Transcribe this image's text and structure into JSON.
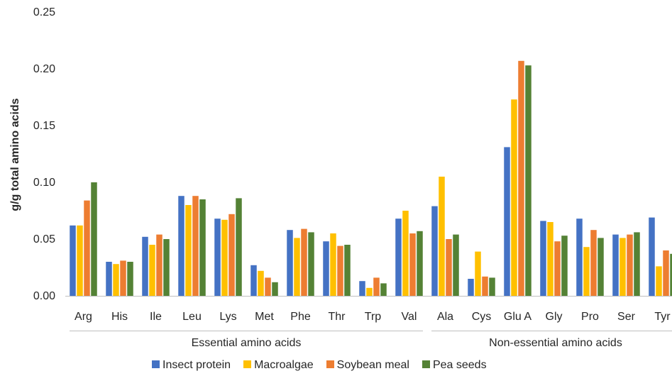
{
  "chart_data": {
    "type": "bar",
    "title": "",
    "xlabel": "",
    "ylabel": "g/g total amino acids",
    "ylim": [
      0,
      0.25
    ],
    "yticks": [
      "0.00",
      "0.05",
      "0.10",
      "0.15",
      "0.20",
      "0.25"
    ],
    "categories": [
      "Arg",
      "His",
      "Ile",
      "Leu",
      "Lys",
      "Met",
      "Phe",
      "Thr",
      "Trp",
      "Val",
      "Ala",
      "Cys",
      "Glu A",
      "Gly",
      "Pro",
      "Ser",
      "Tyr"
    ],
    "category_groups": [
      {
        "label": "Essential amino acids",
        "start": 0,
        "end": 9
      },
      {
        "label": "Non-essential amino acids",
        "start": 10,
        "end": 16
      }
    ],
    "grid": false,
    "legend_position": "bottom",
    "series": [
      {
        "name": "Insect protein",
        "color": "#4472C4",
        "values": [
          0.062,
          0.03,
          0.052,
          0.088,
          0.068,
          0.027,
          0.058,
          0.048,
          0.013,
          0.068,
          0.079,
          0.015,
          0.131,
          0.066,
          0.068,
          0.054,
          0.069
        ]
      },
      {
        "name": "Macroalgae",
        "color": "#FFC000",
        "values": [
          0.062,
          0.028,
          0.045,
          0.08,
          0.067,
          0.022,
          0.051,
          0.055,
          0.007,
          0.075,
          0.105,
          0.039,
          0.173,
          0.065,
          0.043,
          0.051,
          0.026
        ]
      },
      {
        "name": "Soybean meal",
        "color": "#ED7D31",
        "values": [
          0.084,
          0.031,
          0.054,
          0.088,
          0.072,
          0.016,
          0.059,
          0.044,
          0.016,
          0.055,
          0.05,
          0.017,
          0.207,
          0.048,
          0.058,
          0.054,
          0.04
        ]
      },
      {
        "name": "Pea seeds",
        "color": "#548235",
        "values": [
          0.1,
          0.03,
          0.05,
          0.085,
          0.086,
          0.012,
          0.056,
          0.045,
          0.011,
          0.057,
          0.054,
          0.016,
          0.203,
          0.053,
          0.051,
          0.056,
          0.037
        ]
      }
    ]
  }
}
